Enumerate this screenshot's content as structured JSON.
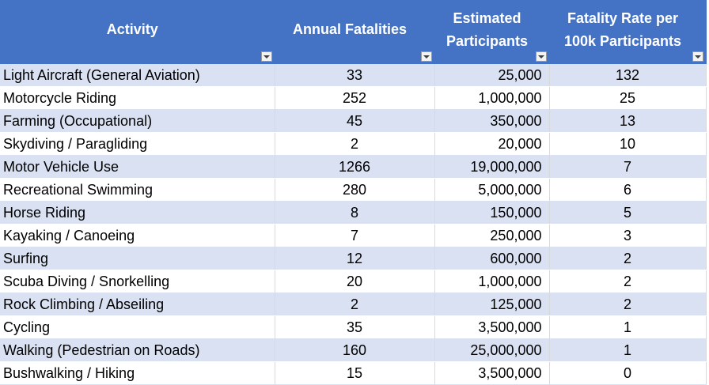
{
  "headers": [
    "Activity",
    "Annual Fatalities",
    "Estimated Participants",
    "Fatality Rate per 100k Participants"
  ],
  "filter_icon": "dropdown-arrow-icon",
  "colors": {
    "header_bg": "#4472c4",
    "band_bg": "#d9e1f2",
    "header_text": "#ffffff"
  },
  "rows": [
    {
      "activity": "Light Aircraft (General Aviation)",
      "fatalities": "33",
      "participants": "25,000",
      "rate": "132"
    },
    {
      "activity": "Motorcycle Riding",
      "fatalities": "252",
      "participants": "1,000,000",
      "rate": "25"
    },
    {
      "activity": "Farming (Occupational)",
      "fatalities": "45",
      "participants": "350,000",
      "rate": "13"
    },
    {
      "activity": "Skydiving / Paragliding",
      "fatalities": "2",
      "participants": "20,000",
      "rate": "10"
    },
    {
      "activity": "Motor Vehicle Use",
      "fatalities": "1266",
      "participants": "19,000,000",
      "rate": "7"
    },
    {
      "activity": "Recreational Swimming",
      "fatalities": "280",
      "participants": "5,000,000",
      "rate": "6"
    },
    {
      "activity": "Horse Riding",
      "fatalities": "8",
      "participants": "150,000",
      "rate": "5"
    },
    {
      "activity": "Kayaking / Canoeing",
      "fatalities": "7",
      "participants": "250,000",
      "rate": "3"
    },
    {
      "activity": "Surfing",
      "fatalities": "12",
      "participants": "600,000",
      "rate": "2"
    },
    {
      "activity": "Scuba Diving / Snorkelling",
      "fatalities": "20",
      "participants": "1,000,000",
      "rate": "2"
    },
    {
      "activity": "Rock Climbing / Abseiling",
      "fatalities": "2",
      "participants": "125,000",
      "rate": "2"
    },
    {
      "activity": "Cycling",
      "fatalities": "35",
      "participants": "3,500,000",
      "rate": "1"
    },
    {
      "activity": "Walking (Pedestrian on Roads)",
      "fatalities": "160",
      "participants": "25,000,000",
      "rate": "1"
    },
    {
      "activity": "Bushwalking / Hiking",
      "fatalities": "15",
      "participants": "3,500,000",
      "rate": "0"
    }
  ]
}
